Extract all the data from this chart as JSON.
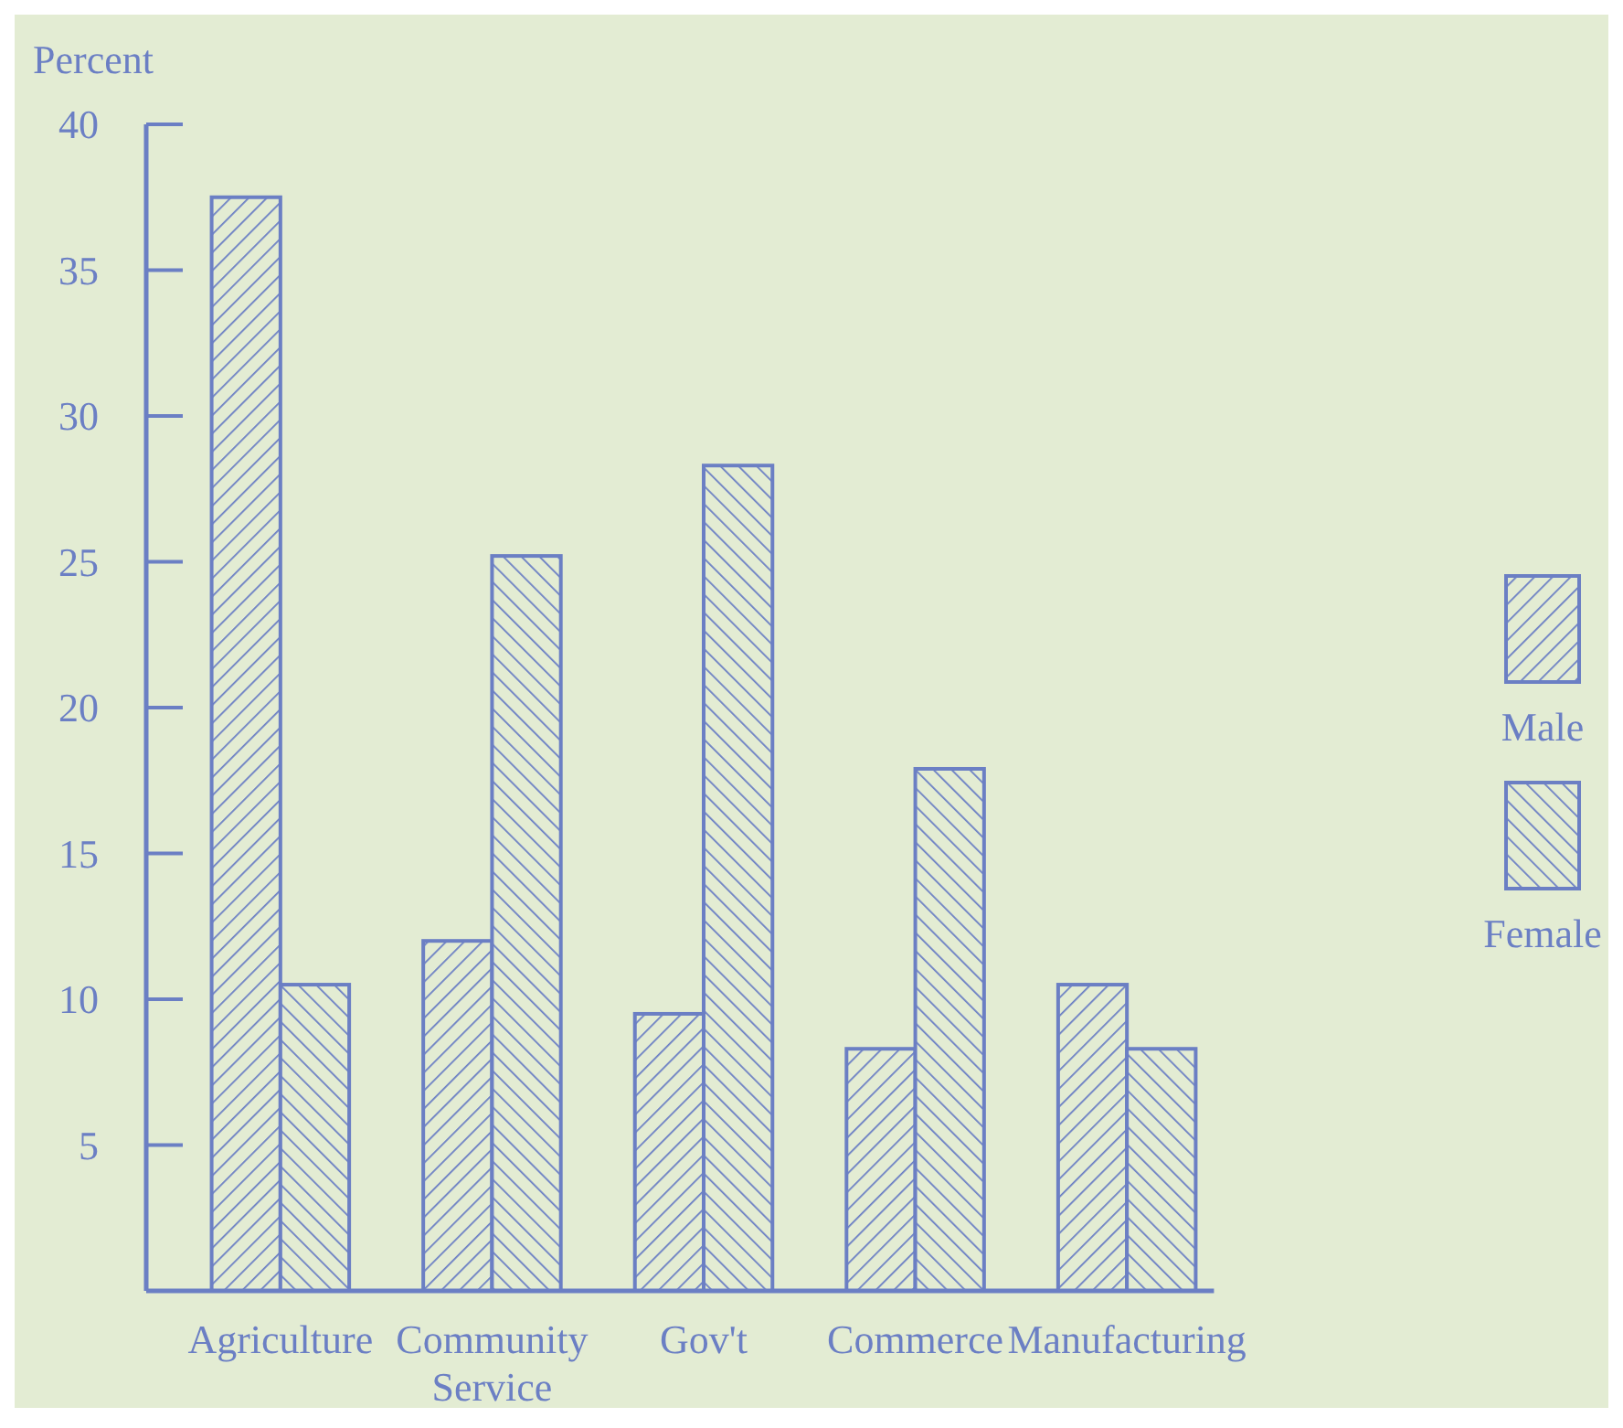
{
  "chart_data": {
    "type": "bar",
    "ylabel": "Percent",
    "categories": [
      "Agriculture",
      "Community Service",
      "Gov't",
      "Commerce",
      "Manufacturing"
    ],
    "series": [
      {
        "name": "Male",
        "color": "#6b7fc4",
        "values": [
          37.5,
          12,
          9.5,
          8.3,
          10.5
        ]
      },
      {
        "name": "Female",
        "color": "#6b7fc4",
        "values": [
          10.5,
          25.2,
          28.3,
          17.9,
          8.3
        ]
      }
    ],
    "ylim": [
      0,
      40
    ],
    "yticks": [
      5,
      10,
      15,
      20,
      25,
      30,
      35,
      40
    ],
    "grid": false,
    "legend": "right"
  }
}
